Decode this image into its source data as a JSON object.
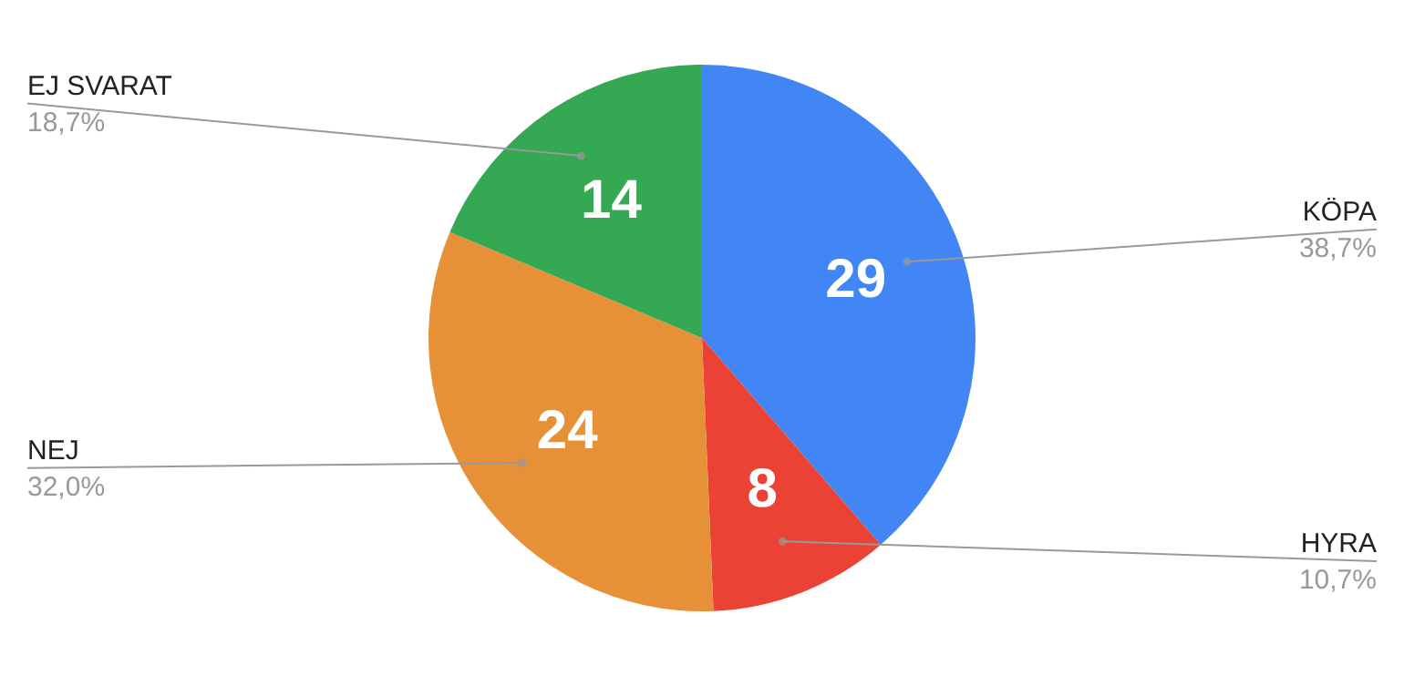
{
  "chart_data": {
    "type": "pie",
    "categories": [
      "KÖPA",
      "HYRA",
      "NEJ",
      "EJ SVARAT"
    ],
    "values": [
      29,
      8,
      24,
      14
    ],
    "colors": [
      "#4285f4",
      "#ea4335",
      "#e69138",
      "#34a853"
    ],
    "data_labels": true,
    "annotations": [
      "38,7%",
      "10,7%",
      "32,0%",
      "18,7%"
    ]
  }
}
